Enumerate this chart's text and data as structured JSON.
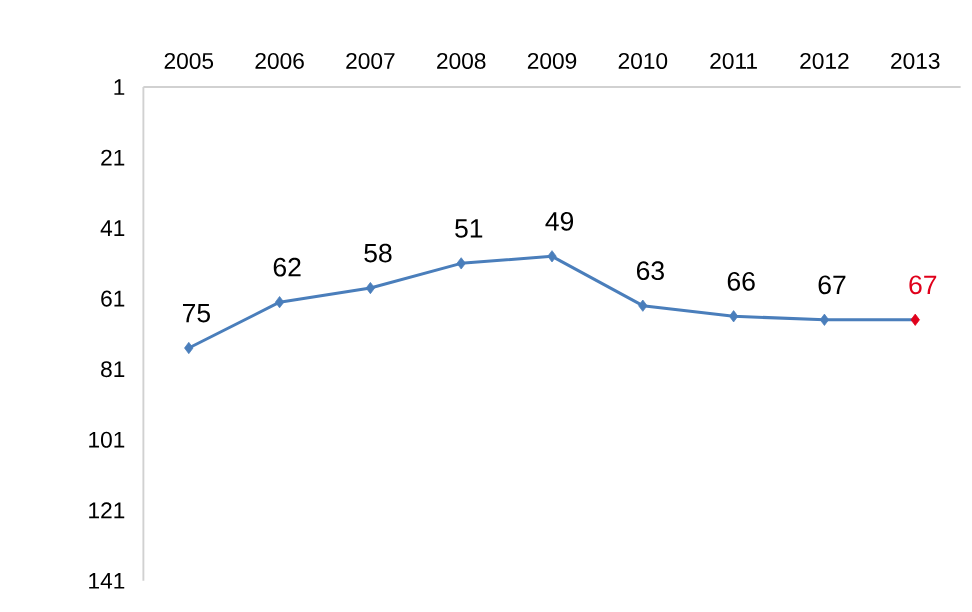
{
  "chart_data": {
    "type": "line",
    "categories": [
      "2005",
      "2006",
      "2007",
      "2008",
      "2009",
      "2010",
      "2011",
      "2012",
      "2013"
    ],
    "series": [
      {
        "color": "#4a7ebb",
        "colors": [
          "#4a7ebb",
          "#4a7ebb",
          "#4a7ebb",
          "#4a7ebb",
          "#4a7ebb",
          "#4a7ebb",
          "#4a7ebb",
          "#4a7ebb",
          "#e0001b"
        ],
        "values": [
          75,
          62,
          58,
          51,
          49,
          63,
          66,
          67,
          67
        ]
      }
    ],
    "ylim": [
      141,
      1
    ],
    "yticks": [
      1,
      21,
      41,
      61,
      81,
      101,
      121,
      141
    ],
    "marker": "diamond",
    "line_style": "solid",
    "data_labels": true
  }
}
